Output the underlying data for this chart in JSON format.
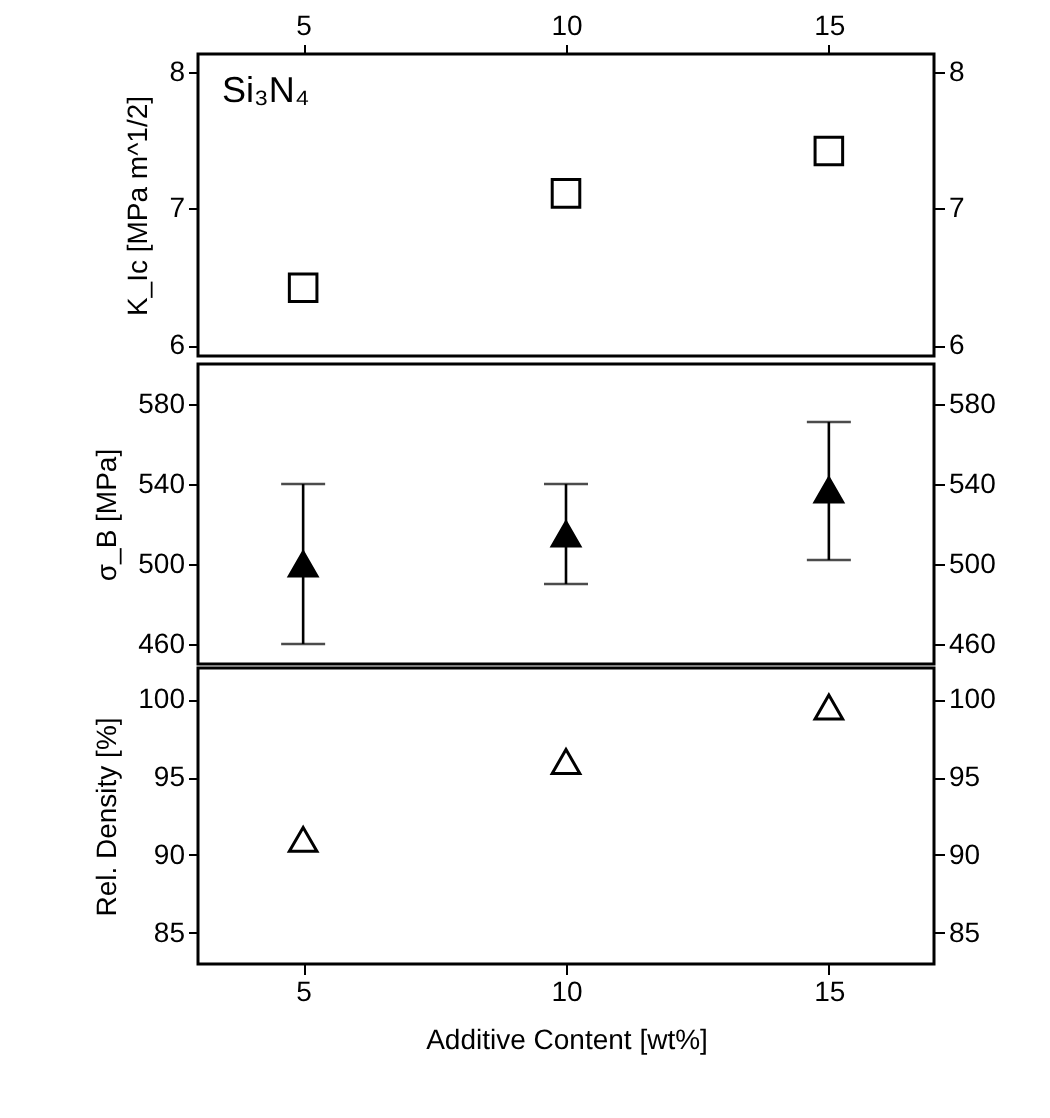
{
  "chart_data": [
    {
      "type": "scatter",
      "x": [
        5,
        10,
        15
      ],
      "values": [
        6.42,
        7.11,
        7.42
      ],
      "color": "#000000",
      "marker": "square",
      "ylabel": "K_Ic [MPa m^1/2]",
      "ylim": [
        5.92,
        8.13
      ],
      "yticks": [
        6,
        7,
        8
      ],
      "y2lim": [
        5.92,
        8.13
      ],
      "y2ticks": [
        6,
        7,
        8
      ],
      "xlim": [
        3,
        17
      ],
      "xticks": [
        5,
        10,
        15
      ],
      "annotations": [
        "Si₃N₄"
      ],
      "grid": false
    },
    {
      "type": "scatter",
      "x": [
        5,
        10,
        15
      ],
      "values": [
        500,
        515,
        537
      ],
      "errors": [
        [
          460,
          540
        ],
        [
          490,
          540
        ],
        [
          502,
          571
        ]
      ],
      "color": "#000000",
      "marker": "triangle",
      "ylabel": "σ_B [MPa]",
      "ylim": [
        450,
        600
      ],
      "yticks": [
        460,
        500,
        540,
        580
      ],
      "y2lim": [
        450,
        600
      ],
      "y2ticks": [
        460,
        500,
        540,
        580
      ],
      "xlim": [
        3,
        17
      ],
      "tick_labels": "y",
      "grid": false
    },
    {
      "type": "scatter",
      "x": [
        5,
        10,
        15
      ],
      "values": [
        91,
        96,
        99.5
      ],
      "color": "#000000",
      "marker": "triangle",
      "ylabel": "Rel. Density [%]",
      "xlabel": "Additive Content [wt%]",
      "ylim": [
        83,
        102
      ],
      "yticks": [
        85,
        90,
        95,
        100
      ],
      "y2lim": [
        83,
        102
      ],
      "y2ticks": [
        85,
        90,
        95,
        100
      ],
      "xlim": [
        3,
        17
      ],
      "xticks": [
        5,
        10,
        15
      ],
      "grid": false
    }
  ]
}
